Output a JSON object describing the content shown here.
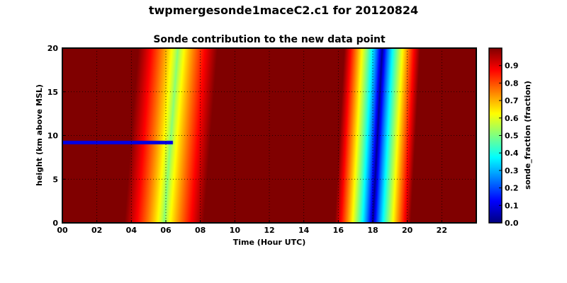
{
  "page": {
    "title": "twpmergesonde1maceC2.c1 for 20120824"
  },
  "chart_data": {
    "type": "heatmap",
    "title": "Sonde contribution to the new data point",
    "xlabel": "Time (Hour UTC)",
    "ylabel": "height (km above MSL)",
    "xlim": [
      0,
      24
    ],
    "ylim": [
      0,
      20
    ],
    "x_ticks": [
      0,
      2,
      4,
      6,
      8,
      10,
      12,
      14,
      16,
      18,
      20,
      22
    ],
    "x_tick_labels": [
      "00",
      "02",
      "04",
      "06",
      "08",
      "10",
      "12",
      "14",
      "16",
      "18",
      "20",
      "22"
    ],
    "y_ticks": [
      0,
      5,
      10,
      15,
      20
    ],
    "y_tick_labels": [
      "0",
      "5",
      "10",
      "15",
      "20"
    ],
    "grid": true,
    "colormap": "jet",
    "colorbar": {
      "label": "sonde_fraction (fraction)",
      "range": [
        0.0,
        1.0
      ],
      "ticks": [
        0.0,
        0.1,
        0.2,
        0.3,
        0.4,
        0.5,
        0.6,
        0.7,
        0.8,
        0.9
      ],
      "tick_labels": [
        "0.0",
        "0.1",
        "0.2",
        "0.3",
        "0.4",
        "0.5",
        "0.6",
        "0.7",
        "0.8",
        "0.9"
      ]
    },
    "minima": [
      {
        "hour_at_0km": 5.9,
        "hour_at_20km": 6.7,
        "min_value": 0.5,
        "half_width_hours": 2.3
      },
      {
        "hour_at_0km": 18.0,
        "hour_at_20km": 18.55,
        "min_value": 0.0,
        "half_width_hours": 2.2
      }
    ],
    "band_feature": {
      "height_km": 9.2,
      "x_start_hour": 0,
      "x_end_hour": 6.4,
      "value": 0.1
    }
  }
}
